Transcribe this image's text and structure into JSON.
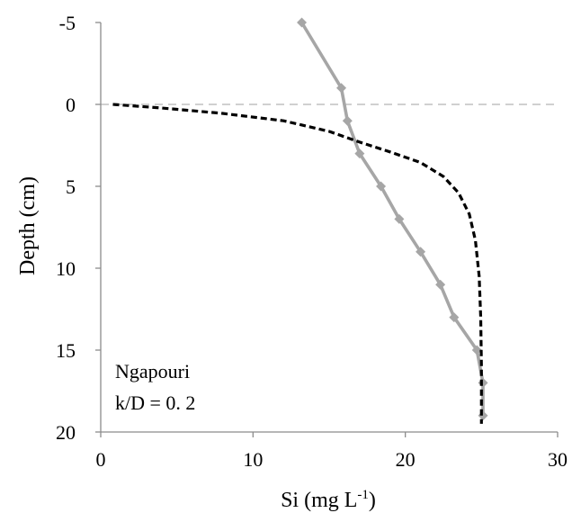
{
  "chart_data": {
    "type": "line",
    "title": "",
    "xlabel": "Si (mg L",
    "xlabel_superscript": "-1",
    "xlabel_suffix": ")",
    "ylabel": "Depth (cm)",
    "xlim": [
      0,
      30
    ],
    "ylim": [
      -5,
      20
    ],
    "y_inverted": true,
    "x_ticks": [
      "0",
      "10",
      "20",
      "30"
    ],
    "y_ticks": [
      "-5",
      "0",
      "5",
      "10",
      "15",
      "20"
    ],
    "x_tick_values": [
      0,
      10,
      20,
      30
    ],
    "y_tick_values": [
      -5,
      0,
      5,
      10,
      15,
      20
    ],
    "grid": false,
    "reference_line": {
      "y": 0,
      "style": "dashed",
      "color": "#b3b3b3"
    },
    "annotations": [
      "Ngapouri",
      "k/D = 0. 2"
    ],
    "series": [
      {
        "style": "solid-markers",
        "marker": "diamond",
        "color": "#a6a6a6",
        "points": [
          {
            "x": 13.2,
            "y": -5
          },
          {
            "x": 15.8,
            "y": -1
          },
          {
            "x": 16.2,
            "y": 1
          },
          {
            "x": 17.0,
            "y": 3
          },
          {
            "x": 18.4,
            "y": 5
          },
          {
            "x": 19.6,
            "y": 7
          },
          {
            "x": 21.0,
            "y": 9
          },
          {
            "x": 22.3,
            "y": 11
          },
          {
            "x": 23.2,
            "y": 13
          },
          {
            "x": 24.7,
            "y": 15
          },
          {
            "x": 25.1,
            "y": 17
          },
          {
            "x": 25.1,
            "y": 19
          }
        ]
      },
      {
        "style": "dashed",
        "color": "#000000",
        "points": [
          {
            "x": 0.8,
            "y": 0
          },
          {
            "x": 4.0,
            "y": 0.22
          },
          {
            "x": 8.0,
            "y": 0.55
          },
          {
            "x": 12.0,
            "y": 1.0
          },
          {
            "x": 15.0,
            "y": 1.65
          },
          {
            "x": 17.0,
            "y": 2.3
          },
          {
            "x": 19.0,
            "y": 2.9
          },
          {
            "x": 21.0,
            "y": 3.55
          },
          {
            "x": 22.5,
            "y": 4.4
          },
          {
            "x": 23.5,
            "y": 5.4
          },
          {
            "x": 24.2,
            "y": 6.7
          },
          {
            "x": 24.6,
            "y": 8.3
          },
          {
            "x": 24.85,
            "y": 10.5
          },
          {
            "x": 24.95,
            "y": 13.0
          },
          {
            "x": 25.0,
            "y": 16.0
          },
          {
            "x": 25.0,
            "y": 19.5
          }
        ]
      }
    ]
  }
}
